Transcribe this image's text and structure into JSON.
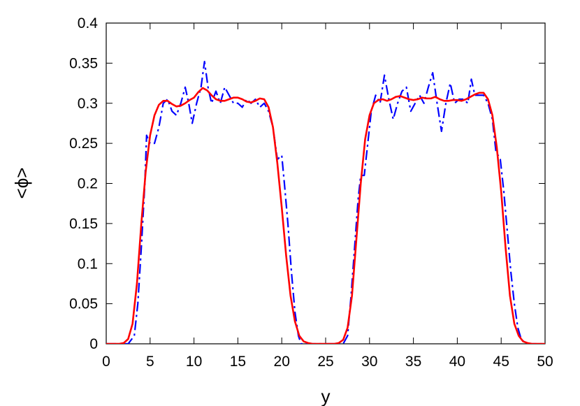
{
  "chart_data": {
    "type": "line",
    "title": "",
    "xlabel": "y",
    "ylabel": "<ϕ>",
    "xlim": [
      0,
      50
    ],
    "ylim": [
      0,
      0.4
    ],
    "xticks": [
      0,
      5,
      10,
      15,
      20,
      25,
      30,
      35,
      40,
      45,
      50
    ],
    "yticks": [
      0,
      0.05,
      0.1,
      0.15,
      0.2,
      0.25,
      0.3,
      0.35,
      0.4
    ],
    "xtick_labels": [
      "0",
      "5",
      "10",
      "15",
      "20",
      "25",
      "30",
      "35",
      "40",
      "45",
      "50"
    ],
    "ytick_labels": [
      "0",
      "0.05",
      "0.1",
      "0.15",
      "0.2",
      "0.25",
      "0.3",
      "0.35",
      "0.4"
    ],
    "grid": false,
    "legend": "none",
    "series": [
      {
        "style": "dash-dot",
        "color": "#0000ff",
        "points": [
          [
            0,
            0
          ],
          [
            2.5,
            0
          ],
          [
            3.2,
            0.01
          ],
          [
            3.6,
            0.05
          ],
          [
            4.0,
            0.12
          ],
          [
            4.4,
            0.2
          ],
          [
            4.6,
            0.26
          ],
          [
            5.0,
            0.25
          ],
          [
            5.5,
            0.25
          ],
          [
            6.0,
            0.27
          ],
          [
            6.5,
            0.3
          ],
          [
            7.0,
            0.305
          ],
          [
            7.5,
            0.29
          ],
          [
            8.0,
            0.285
          ],
          [
            8.5,
            0.3
          ],
          [
            9.0,
            0.32
          ],
          [
            9.4,
            0.3
          ],
          [
            9.8,
            0.275
          ],
          [
            10.3,
            0.3
          ],
          [
            10.8,
            0.32
          ],
          [
            11.2,
            0.352
          ],
          [
            11.6,
            0.32
          ],
          [
            12.0,
            0.3
          ],
          [
            12.5,
            0.315
          ],
          [
            13.0,
            0.3
          ],
          [
            13.5,
            0.32
          ],
          [
            14.0,
            0.31
          ],
          [
            14.5,
            0.3
          ],
          [
            15.0,
            0.3
          ],
          [
            15.5,
            0.295
          ],
          [
            16.0,
            0.305
          ],
          [
            16.5,
            0.3
          ],
          [
            17.0,
            0.305
          ],
          [
            17.5,
            0.295
          ],
          [
            18.0,
            0.3
          ],
          [
            18.5,
            0.29
          ],
          [
            19.0,
            0.27
          ],
          [
            19.5,
            0.23
          ],
          [
            20.0,
            0.235
          ],
          [
            20.3,
            0.2
          ],
          [
            20.7,
            0.15
          ],
          [
            21.1,
            0.09
          ],
          [
            21.5,
            0.04
          ],
          [
            21.9,
            0.01
          ],
          [
            22.2,
            0
          ],
          [
            27.0,
            0
          ],
          [
            27.5,
            0.01
          ],
          [
            27.9,
            0.06
          ],
          [
            28.3,
            0.12
          ],
          [
            28.7,
            0.18
          ],
          [
            29.0,
            0.21
          ],
          [
            29.4,
            0.21
          ],
          [
            29.8,
            0.25
          ],
          [
            30.2,
            0.29
          ],
          [
            30.7,
            0.31
          ],
          [
            31.2,
            0.3
          ],
          [
            31.7,
            0.335
          ],
          [
            32.2,
            0.305
          ],
          [
            32.7,
            0.28
          ],
          [
            33.2,
            0.3
          ],
          [
            33.7,
            0.315
          ],
          [
            34.2,
            0.32
          ],
          [
            34.7,
            0.29
          ],
          [
            35.2,
            0.3
          ],
          [
            35.7,
            0.31
          ],
          [
            36.2,
            0.3
          ],
          [
            36.7,
            0.32
          ],
          [
            37.2,
            0.338
          ],
          [
            37.7,
            0.3
          ],
          [
            38.2,
            0.265
          ],
          [
            38.7,
            0.3
          ],
          [
            39.2,
            0.325
          ],
          [
            39.7,
            0.3
          ],
          [
            40.2,
            0.305
          ],
          [
            40.7,
            0.305
          ],
          [
            41.2,
            0.3
          ],
          [
            41.6,
            0.33
          ],
          [
            42.0,
            0.31
          ],
          [
            42.5,
            0.31
          ],
          [
            43.0,
            0.31
          ],
          [
            43.5,
            0.3
          ],
          [
            44.0,
            0.28
          ],
          [
            44.4,
            0.24
          ],
          [
            44.9,
            0.23
          ],
          [
            45.3,
            0.19
          ],
          [
            45.7,
            0.14
          ],
          [
            46.1,
            0.09
          ],
          [
            46.5,
            0.05
          ],
          [
            46.9,
            0.02
          ],
          [
            47.3,
            0.005
          ],
          [
            48.0,
            0
          ],
          [
            50,
            0
          ]
        ]
      },
      {
        "style": "solid",
        "color": "#ff0000",
        "points": [
          [
            0,
            0
          ],
          [
            1.5,
            0
          ],
          [
            2.0,
            0.001
          ],
          [
            2.5,
            0.006
          ],
          [
            3.0,
            0.025
          ],
          [
            3.5,
            0.075
          ],
          [
            4.0,
            0.15
          ],
          [
            4.5,
            0.215
          ],
          [
            5.0,
            0.26
          ],
          [
            5.5,
            0.285
          ],
          [
            6.0,
            0.298
          ],
          [
            6.5,
            0.303
          ],
          [
            7.0,
            0.303
          ],
          [
            7.5,
            0.299
          ],
          [
            8.0,
            0.296
          ],
          [
            8.5,
            0.297
          ],
          [
            9.0,
            0.3
          ],
          [
            9.5,
            0.304
          ],
          [
            10.0,
            0.307
          ],
          [
            10.5,
            0.314
          ],
          [
            11.0,
            0.319
          ],
          [
            11.5,
            0.316
          ],
          [
            12.0,
            0.31
          ],
          [
            12.5,
            0.305
          ],
          [
            13.0,
            0.303
          ],
          [
            13.5,
            0.303
          ],
          [
            14.0,
            0.305
          ],
          [
            14.5,
            0.307
          ],
          [
            15.0,
            0.307
          ],
          [
            15.5,
            0.305
          ],
          [
            16.0,
            0.302
          ],
          [
            16.5,
            0.301
          ],
          [
            17.0,
            0.303
          ],
          [
            17.5,
            0.306
          ],
          [
            18.0,
            0.305
          ],
          [
            18.5,
            0.295
          ],
          [
            19.0,
            0.27
          ],
          [
            19.5,
            0.225
          ],
          [
            20.0,
            0.17
          ],
          [
            20.5,
            0.11
          ],
          [
            21.0,
            0.06
          ],
          [
            21.5,
            0.028
          ],
          [
            22.0,
            0.01
          ],
          [
            22.5,
            0.003
          ],
          [
            23.0,
            0.001
          ],
          [
            23.5,
            0
          ],
          [
            26.0,
            0
          ],
          [
            26.5,
            0.001
          ],
          [
            27.0,
            0.005
          ],
          [
            27.5,
            0.02
          ],
          [
            28.0,
            0.06
          ],
          [
            28.5,
            0.13
          ],
          [
            29.0,
            0.2
          ],
          [
            29.5,
            0.255
          ],
          [
            30.0,
            0.285
          ],
          [
            30.5,
            0.3
          ],
          [
            31.0,
            0.304
          ],
          [
            31.5,
            0.305
          ],
          [
            32.0,
            0.303
          ],
          [
            32.5,
            0.305
          ],
          [
            33.0,
            0.308
          ],
          [
            33.5,
            0.309
          ],
          [
            34.0,
            0.307
          ],
          [
            34.5,
            0.305
          ],
          [
            35.0,
            0.304
          ],
          [
            35.5,
            0.305
          ],
          [
            36.0,
            0.307
          ],
          [
            36.5,
            0.306
          ],
          [
            37.0,
            0.306
          ],
          [
            37.5,
            0.308
          ],
          [
            38.0,
            0.305
          ],
          [
            38.5,
            0.303
          ],
          [
            39.0,
            0.303
          ],
          [
            39.5,
            0.304
          ],
          [
            40.0,
            0.304
          ],
          [
            40.5,
            0.303
          ],
          [
            41.0,
            0.305
          ],
          [
            41.5,
            0.308
          ],
          [
            42.0,
            0.311
          ],
          [
            42.5,
            0.313
          ],
          [
            43.0,
            0.313
          ],
          [
            43.5,
            0.305
          ],
          [
            44.0,
            0.285
          ],
          [
            44.5,
            0.245
          ],
          [
            45.0,
            0.19
          ],
          [
            45.5,
            0.12
          ],
          [
            46.0,
            0.06
          ],
          [
            46.5,
            0.025
          ],
          [
            47.0,
            0.01
          ],
          [
            47.5,
            0.003
          ],
          [
            48.0,
            0.001
          ],
          [
            48.5,
            0
          ],
          [
            50,
            0
          ]
        ]
      }
    ]
  }
}
